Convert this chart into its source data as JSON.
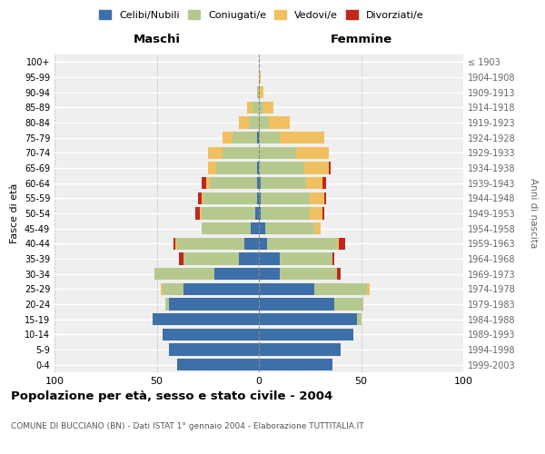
{
  "age_groups": [
    "0-4",
    "5-9",
    "10-14",
    "15-19",
    "20-24",
    "25-29",
    "30-34",
    "35-39",
    "40-44",
    "45-49",
    "50-54",
    "55-59",
    "60-64",
    "65-69",
    "70-74",
    "75-79",
    "80-84",
    "85-89",
    "90-94",
    "95-99",
    "100+"
  ],
  "birth_years": [
    "1999-2003",
    "1994-1998",
    "1989-1993",
    "1984-1988",
    "1979-1983",
    "1974-1978",
    "1969-1973",
    "1964-1968",
    "1959-1963",
    "1954-1958",
    "1949-1953",
    "1944-1948",
    "1939-1943",
    "1934-1938",
    "1929-1933",
    "1924-1928",
    "1919-1923",
    "1914-1918",
    "1909-1913",
    "1904-1908",
    "≤ 1903"
  ],
  "males": {
    "celibi": [
      40,
      44,
      47,
      52,
      44,
      37,
      22,
      10,
      7,
      4,
      2,
      1,
      1,
      1,
      0,
      1,
      0,
      0,
      0,
      0,
      0
    ],
    "coniugati": [
      0,
      0,
      0,
      0,
      2,
      10,
      29,
      27,
      33,
      24,
      26,
      26,
      23,
      20,
      18,
      12,
      5,
      3,
      1,
      0,
      0
    ],
    "vedovi": [
      0,
      0,
      0,
      0,
      0,
      1,
      0,
      0,
      1,
      0,
      1,
      1,
      2,
      4,
      7,
      5,
      5,
      3,
      0,
      0,
      0
    ],
    "divorziati": [
      0,
      0,
      0,
      0,
      0,
      0,
      0,
      2,
      1,
      0,
      2,
      2,
      2,
      0,
      0,
      0,
      0,
      0,
      0,
      0,
      0
    ]
  },
  "females": {
    "nubili": [
      36,
      40,
      46,
      48,
      37,
      27,
      10,
      10,
      4,
      3,
      1,
      1,
      1,
      0,
      0,
      0,
      0,
      0,
      0,
      0,
      0
    ],
    "coniugate": [
      0,
      0,
      0,
      2,
      14,
      26,
      28,
      26,
      34,
      24,
      24,
      24,
      22,
      22,
      18,
      10,
      5,
      2,
      0,
      0,
      0
    ],
    "vedove": [
      0,
      0,
      0,
      0,
      0,
      1,
      0,
      0,
      1,
      3,
      6,
      7,
      8,
      12,
      16,
      22,
      10,
      5,
      2,
      1,
      0
    ],
    "divorziate": [
      0,
      0,
      0,
      0,
      0,
      0,
      2,
      1,
      3,
      0,
      1,
      1,
      2,
      1,
      0,
      0,
      0,
      0,
      0,
      0,
      0
    ]
  },
  "colors": {
    "celibi": "#3d6fa8",
    "coniugati": "#b5c98e",
    "vedovi": "#f0c060",
    "divorziati": "#c0281c"
  },
  "legend_labels": [
    "Celibi/Nubili",
    "Coniugati/e",
    "Vedovi/e",
    "Divorziati/e"
  ],
  "title": "Popolazione per età, sesso e stato civile - 2004",
  "subtitle": "COMUNE DI BUCCIANO (BN) - Dati ISTAT 1° gennaio 2004 - Elaborazione TUTTITALIA.IT",
  "xlabel_left": "Maschi",
  "xlabel_right": "Femmine",
  "ylabel": "Fasce di età",
  "ylabel_right": "Anni di nascita",
  "xlim": 100,
  "background_color": "#efefef"
}
